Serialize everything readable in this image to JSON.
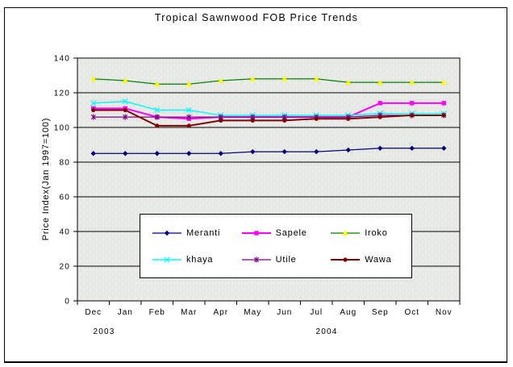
{
  "chart_data": {
    "type": "line",
    "title": "Tropical Sawnwood FOB Price Trends",
    "xlabel": "",
    "ylabel": "Price Index(Jan 1997=100)",
    "ylim": [
      0,
      140
    ],
    "yticks": [
      0,
      20,
      40,
      60,
      80,
      100,
      120,
      140
    ],
    "grid": true,
    "legend_position": "inside-bottom-center",
    "categories": [
      "Dec",
      "Jan",
      "Feb",
      "Mar",
      "Apr",
      "May",
      "Jun",
      "Jul",
      "Aug",
      "Sep",
      "Oct",
      "Nov"
    ],
    "year_labels": [
      {
        "text": "2003",
        "under_category": "Dec"
      },
      {
        "text": "2004",
        "under_category": "Jul"
      }
    ],
    "colors": {
      "plot_background_base": "#d5dbd3",
      "plot_background_dither": "#ffffff",
      "gridline": "#000000",
      "axis": "#000000",
      "text": "#000000",
      "chart_background": "#ffffff"
    },
    "series": [
      {
        "name": "Meranti",
        "color": "#000080",
        "marker": "diamond",
        "marker_color": "#000080",
        "line_width": 1.25,
        "values": [
          85,
          85,
          85,
          85,
          85,
          86,
          86,
          86,
          87,
          88,
          88,
          88
        ]
      },
      {
        "name": "Sapele",
        "color": "#ff00ff",
        "marker": "square",
        "marker_color": "#ff00ff",
        "line_width": 2,
        "values": [
          111,
          111,
          106,
          105,
          106,
          106,
          106,
          106,
          106,
          114,
          114,
          114
        ]
      },
      {
        "name": "Iroko",
        "color": "#008000",
        "marker": "triangle",
        "marker_color": "#ffff00",
        "line_width": 1.25,
        "values": [
          128,
          127,
          125,
          125,
          127,
          128,
          128,
          128,
          126,
          126,
          126,
          126
        ]
      },
      {
        "name": "khaya",
        "color": "#00ffff",
        "marker": "x",
        "marker_color": "#00ffff",
        "line_width": 1.5,
        "values": [
          114,
          115,
          110,
          110,
          107,
          107,
          107,
          107,
          107,
          108,
          108,
          108
        ]
      },
      {
        "name": "Utile",
        "color": "#800080",
        "marker": "star",
        "marker_color": "#800080",
        "line_width": 1.25,
        "values": [
          106,
          106,
          106,
          106,
          106,
          106,
          106,
          106,
          106,
          107,
          107,
          107
        ]
      },
      {
        "name": "Wawa",
        "color": "#800000",
        "marker": "circle",
        "marker_color": "#800000",
        "line_width": 2,
        "values": [
          110,
          110,
          101,
          101,
          104,
          104,
          104,
          105,
          105,
          106,
          107,
          107
        ]
      }
    ]
  }
}
